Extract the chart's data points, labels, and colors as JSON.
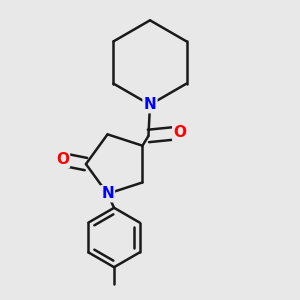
{
  "bg_color": "#e8e8e8",
  "bond_color": "#1a1a1a",
  "N_color": "#0000ff",
  "O_color": "#ff0000",
  "bond_width": 1.8,
  "font_size_atom": 11,
  "xlim": [
    0.05,
    0.95
  ],
  "ylim": [
    0.02,
    0.98
  ]
}
